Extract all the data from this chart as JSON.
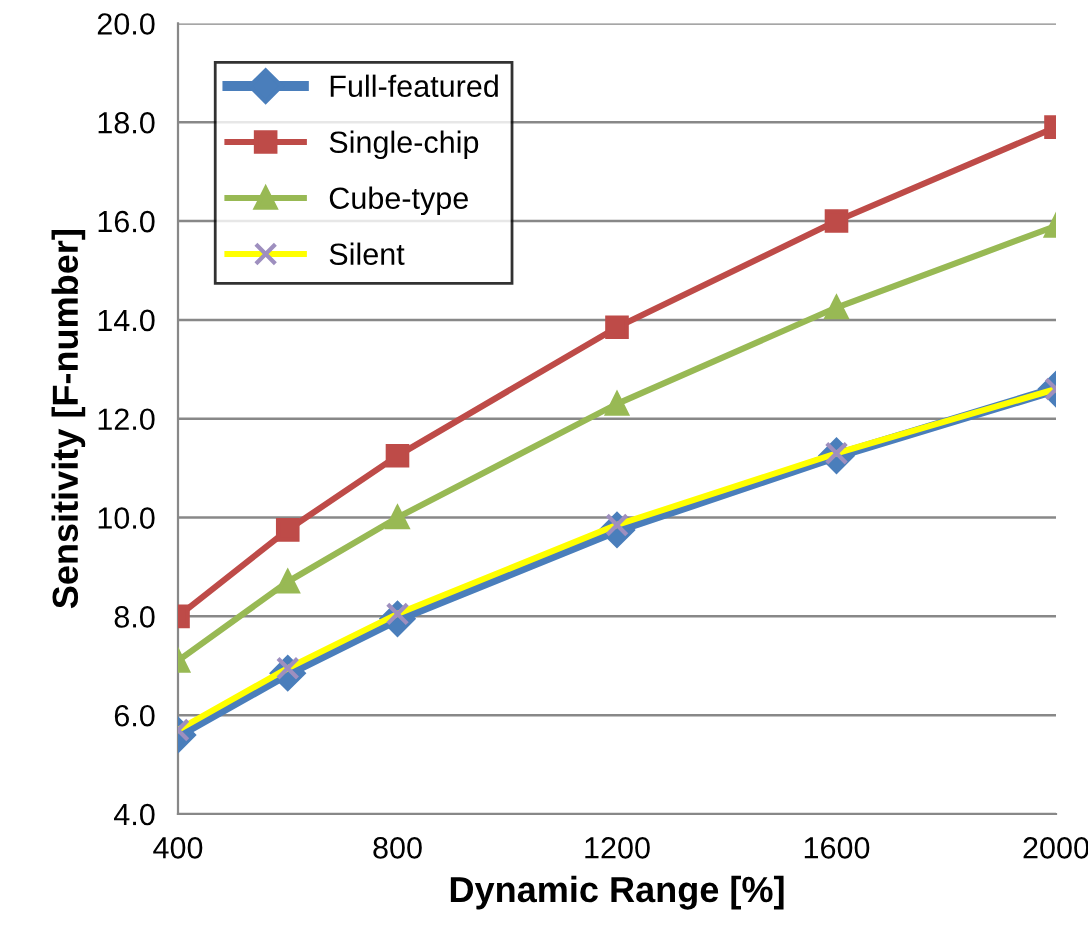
{
  "chart_data": {
    "type": "line",
    "xlabel": "Dynamic Range [%]",
    "ylabel": "Sensitivity [F-number]",
    "x": [
      400,
      600,
      800,
      1200,
      1600,
      2000
    ],
    "series": [
      {
        "name": "Full-featured",
        "color": "#4a7ebb",
        "marker": "diamond",
        "values": [
          5.6,
          6.85,
          7.95,
          9.75,
          11.25,
          12.6
        ]
      },
      {
        "name": "Single-chip",
        "color": "#be4b48",
        "marker": "square",
        "values": [
          8.0,
          9.75,
          11.25,
          13.85,
          16.0,
          17.9
        ]
      },
      {
        "name": "Cube-type",
        "color": "#98b954",
        "marker": "triangle",
        "values": [
          7.1,
          8.7,
          10.0,
          12.3,
          14.25,
          15.9
        ]
      },
      {
        "name": "Silent",
        "color": "#ffff00",
        "marker": "cross",
        "values": [
          5.7,
          6.95,
          8.05,
          9.85,
          11.3,
          12.6
        ]
      }
    ],
    "xlim": [
      400,
      2000
    ],
    "xticks": [
      400,
      800,
      1200,
      1600,
      2000
    ],
    "ylim": [
      4,
      20
    ],
    "yticks": [
      {
        "value": 4,
        "label": "4.0"
      },
      {
        "value": 6,
        "label": "6.0"
      },
      {
        "value": 8,
        "label": "8.0"
      },
      {
        "value": 10,
        "label": "10.0"
      },
      {
        "value": 12,
        "label": "12.0"
      },
      {
        "value": 14,
        "label": "14.0"
      },
      {
        "value": 16,
        "label": "16.0"
      },
      {
        "value": 18,
        "label": "18.0"
      },
      {
        "value": 20,
        "label": "20.0"
      }
    ],
    "grid": "y",
    "legend": "top left",
    "line_style": "solid"
  }
}
